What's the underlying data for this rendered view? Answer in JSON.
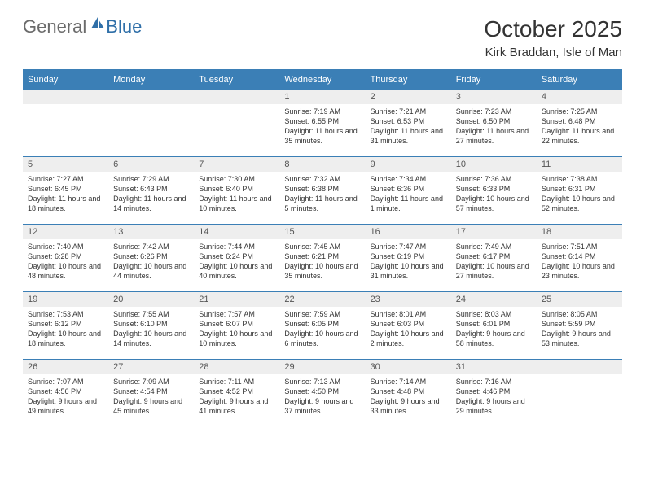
{
  "brand": {
    "general": "General",
    "blue": "Blue"
  },
  "title": "October 2025",
  "location": "Kirk Braddan, Isle of Man",
  "colors": {
    "header_bg": "#3b7fb6",
    "daynum_bg": "#eeeeee",
    "text": "#333333",
    "logo_gray": "#6b6b6b",
    "logo_blue": "#2f6fa8"
  },
  "dayNames": [
    "Sunday",
    "Monday",
    "Tuesday",
    "Wednesday",
    "Thursday",
    "Friday",
    "Saturday"
  ],
  "weeks": [
    [
      null,
      null,
      null,
      {
        "n": "1",
        "sunrise": "7:19 AM",
        "sunset": "6:55 PM",
        "daylight": "11 hours and 35 minutes."
      },
      {
        "n": "2",
        "sunrise": "7:21 AM",
        "sunset": "6:53 PM",
        "daylight": "11 hours and 31 minutes."
      },
      {
        "n": "3",
        "sunrise": "7:23 AM",
        "sunset": "6:50 PM",
        "daylight": "11 hours and 27 minutes."
      },
      {
        "n": "4",
        "sunrise": "7:25 AM",
        "sunset": "6:48 PM",
        "daylight": "11 hours and 22 minutes."
      }
    ],
    [
      {
        "n": "5",
        "sunrise": "7:27 AM",
        "sunset": "6:45 PM",
        "daylight": "11 hours and 18 minutes."
      },
      {
        "n": "6",
        "sunrise": "7:29 AM",
        "sunset": "6:43 PM",
        "daylight": "11 hours and 14 minutes."
      },
      {
        "n": "7",
        "sunrise": "7:30 AM",
        "sunset": "6:40 PM",
        "daylight": "11 hours and 10 minutes."
      },
      {
        "n": "8",
        "sunrise": "7:32 AM",
        "sunset": "6:38 PM",
        "daylight": "11 hours and 5 minutes."
      },
      {
        "n": "9",
        "sunrise": "7:34 AM",
        "sunset": "6:36 PM",
        "daylight": "11 hours and 1 minute."
      },
      {
        "n": "10",
        "sunrise": "7:36 AM",
        "sunset": "6:33 PM",
        "daylight": "10 hours and 57 minutes."
      },
      {
        "n": "11",
        "sunrise": "7:38 AM",
        "sunset": "6:31 PM",
        "daylight": "10 hours and 52 minutes."
      }
    ],
    [
      {
        "n": "12",
        "sunrise": "7:40 AM",
        "sunset": "6:28 PM",
        "daylight": "10 hours and 48 minutes."
      },
      {
        "n": "13",
        "sunrise": "7:42 AM",
        "sunset": "6:26 PM",
        "daylight": "10 hours and 44 minutes."
      },
      {
        "n": "14",
        "sunrise": "7:44 AM",
        "sunset": "6:24 PM",
        "daylight": "10 hours and 40 minutes."
      },
      {
        "n": "15",
        "sunrise": "7:45 AM",
        "sunset": "6:21 PM",
        "daylight": "10 hours and 35 minutes."
      },
      {
        "n": "16",
        "sunrise": "7:47 AM",
        "sunset": "6:19 PM",
        "daylight": "10 hours and 31 minutes."
      },
      {
        "n": "17",
        "sunrise": "7:49 AM",
        "sunset": "6:17 PM",
        "daylight": "10 hours and 27 minutes."
      },
      {
        "n": "18",
        "sunrise": "7:51 AM",
        "sunset": "6:14 PM",
        "daylight": "10 hours and 23 minutes."
      }
    ],
    [
      {
        "n": "19",
        "sunrise": "7:53 AM",
        "sunset": "6:12 PM",
        "daylight": "10 hours and 18 minutes."
      },
      {
        "n": "20",
        "sunrise": "7:55 AM",
        "sunset": "6:10 PM",
        "daylight": "10 hours and 14 minutes."
      },
      {
        "n": "21",
        "sunrise": "7:57 AM",
        "sunset": "6:07 PM",
        "daylight": "10 hours and 10 minutes."
      },
      {
        "n": "22",
        "sunrise": "7:59 AM",
        "sunset": "6:05 PM",
        "daylight": "10 hours and 6 minutes."
      },
      {
        "n": "23",
        "sunrise": "8:01 AM",
        "sunset": "6:03 PM",
        "daylight": "10 hours and 2 minutes."
      },
      {
        "n": "24",
        "sunrise": "8:03 AM",
        "sunset": "6:01 PM",
        "daylight": "9 hours and 58 minutes."
      },
      {
        "n": "25",
        "sunrise": "8:05 AM",
        "sunset": "5:59 PM",
        "daylight": "9 hours and 53 minutes."
      }
    ],
    [
      {
        "n": "26",
        "sunrise": "7:07 AM",
        "sunset": "4:56 PM",
        "daylight": "9 hours and 49 minutes."
      },
      {
        "n": "27",
        "sunrise": "7:09 AM",
        "sunset": "4:54 PM",
        "daylight": "9 hours and 45 minutes."
      },
      {
        "n": "28",
        "sunrise": "7:11 AM",
        "sunset": "4:52 PM",
        "daylight": "9 hours and 41 minutes."
      },
      {
        "n": "29",
        "sunrise": "7:13 AM",
        "sunset": "4:50 PM",
        "daylight": "9 hours and 37 minutes."
      },
      {
        "n": "30",
        "sunrise": "7:14 AM",
        "sunset": "4:48 PM",
        "daylight": "9 hours and 33 minutes."
      },
      {
        "n": "31",
        "sunrise": "7:16 AM",
        "sunset": "4:46 PM",
        "daylight": "9 hours and 29 minutes."
      },
      null
    ]
  ],
  "labels": {
    "sunrise": "Sunrise:",
    "sunset": "Sunset:",
    "daylight": "Daylight:"
  }
}
